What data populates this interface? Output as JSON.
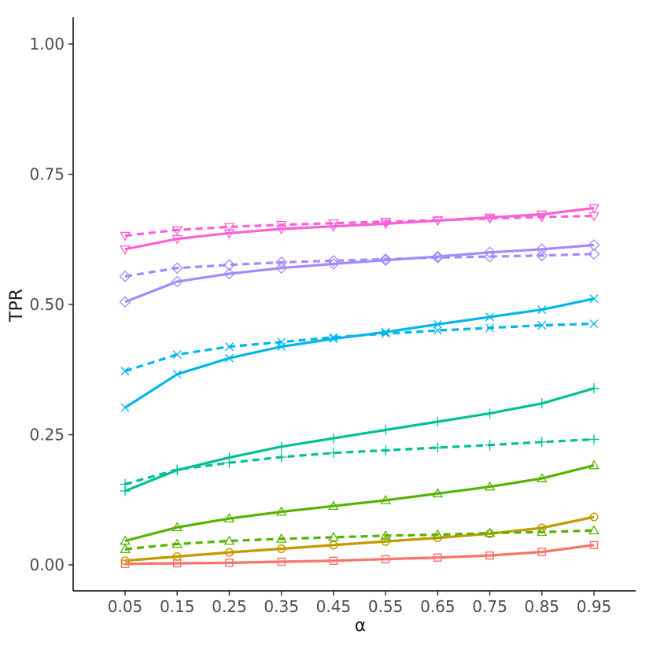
{
  "chart_data": {
    "type": "line",
    "xlabel": "α",
    "ylabel": "TPR",
    "x": [
      0.05,
      0.15,
      0.25,
      0.35,
      0.45,
      0.55,
      0.65,
      0.75,
      0.85,
      0.95
    ],
    "x_tick_labels": [
      "0.05",
      "0.15",
      "0.25",
      "0.35",
      "0.45",
      "0.55",
      "0.65",
      "0.75",
      "0.85",
      "0.95"
    ],
    "y_tick_labels": [
      "0.00",
      "0.25",
      "0.50",
      "0.75",
      "1.00"
    ],
    "y_ticks": [
      0,
      0.25,
      0.5,
      0.75,
      1.0
    ],
    "ylim": [
      -0.05,
      1.05
    ],
    "grid": false,
    "legend": "none",
    "series": [
      {
        "color": "#F8766D",
        "marker": "square",
        "linestyle": "solid",
        "values": [
          0.002,
          0.003,
          0.004,
          0.006,
          0.008,
          0.011,
          0.014,
          0.018,
          0.025,
          0.038
        ]
      },
      {
        "color": "#F8766D",
        "marker": "square",
        "linestyle": "dashed",
        "values": [
          0.002,
          0.003,
          0.004,
          0.006,
          0.008,
          0.011,
          0.014,
          0.018,
          0.025,
          0.038
        ]
      },
      {
        "color": "#C49A00",
        "marker": "circle",
        "linestyle": "solid",
        "values": [
          0.008,
          0.016,
          0.024,
          0.031,
          0.038,
          0.045,
          0.052,
          0.06,
          0.071,
          0.092
        ]
      },
      {
        "color": "#C49A00",
        "marker": "circle",
        "linestyle": "dashed",
        "values": [
          0.008,
          0.016,
          0.024,
          0.031,
          0.038,
          0.045,
          0.052,
          0.06,
          0.071,
          0.092
        ]
      },
      {
        "color": "#53B400",
        "marker": "triangle-up",
        "linestyle": "solid",
        "values": [
          0.046,
          0.072,
          0.089,
          0.102,
          0.113,
          0.124,
          0.137,
          0.15,
          0.166,
          0.191
        ]
      },
      {
        "color": "#53B400",
        "marker": "triangle-up",
        "linestyle": "dashed",
        "values": [
          0.03,
          0.04,
          0.046,
          0.05,
          0.053,
          0.056,
          0.058,
          0.061,
          0.063,
          0.066
        ]
      },
      {
        "color": "#00C094",
        "marker": "plus",
        "linestyle": "solid",
        "values": [
          0.142,
          0.182,
          0.206,
          0.227,
          0.243,
          0.259,
          0.275,
          0.291,
          0.31,
          0.339
        ]
      },
      {
        "color": "#00C094",
        "marker": "plus",
        "linestyle": "dashed",
        "values": [
          0.155,
          0.183,
          0.196,
          0.207,
          0.215,
          0.22,
          0.225,
          0.23,
          0.236,
          0.241
        ]
      },
      {
        "color": "#00B6EB",
        "marker": "cross",
        "linestyle": "solid",
        "values": [
          0.302,
          0.366,
          0.397,
          0.419,
          0.434,
          0.447,
          0.462,
          0.476,
          0.49,
          0.511
        ]
      },
      {
        "color": "#00B6EB",
        "marker": "cross",
        "linestyle": "dashed",
        "values": [
          0.372,
          0.404,
          0.419,
          0.428,
          0.437,
          0.444,
          0.45,
          0.455,
          0.46,
          0.463
        ]
      },
      {
        "color": "#A58AFF",
        "marker": "diamond",
        "linestyle": "solid",
        "values": [
          0.505,
          0.544,
          0.559,
          0.57,
          0.578,
          0.585,
          0.592,
          0.6,
          0.606,
          0.614
        ]
      },
      {
        "color": "#A58AFF",
        "marker": "diamond",
        "linestyle": "dashed",
        "values": [
          0.554,
          0.57,
          0.576,
          0.581,
          0.584,
          0.587,
          0.59,
          0.592,
          0.594,
          0.597
        ]
      },
      {
        "color": "#FB61D7",
        "marker": "triangle-down",
        "linestyle": "solid",
        "values": [
          0.606,
          0.626,
          0.637,
          0.645,
          0.65,
          0.655,
          0.661,
          0.667,
          0.673,
          0.685
        ]
      },
      {
        "color": "#FB61D7",
        "marker": "triangle-down",
        "linestyle": "dashed",
        "values": [
          0.632,
          0.643,
          0.649,
          0.653,
          0.656,
          0.659,
          0.662,
          0.665,
          0.668,
          0.67
        ]
      }
    ]
  }
}
